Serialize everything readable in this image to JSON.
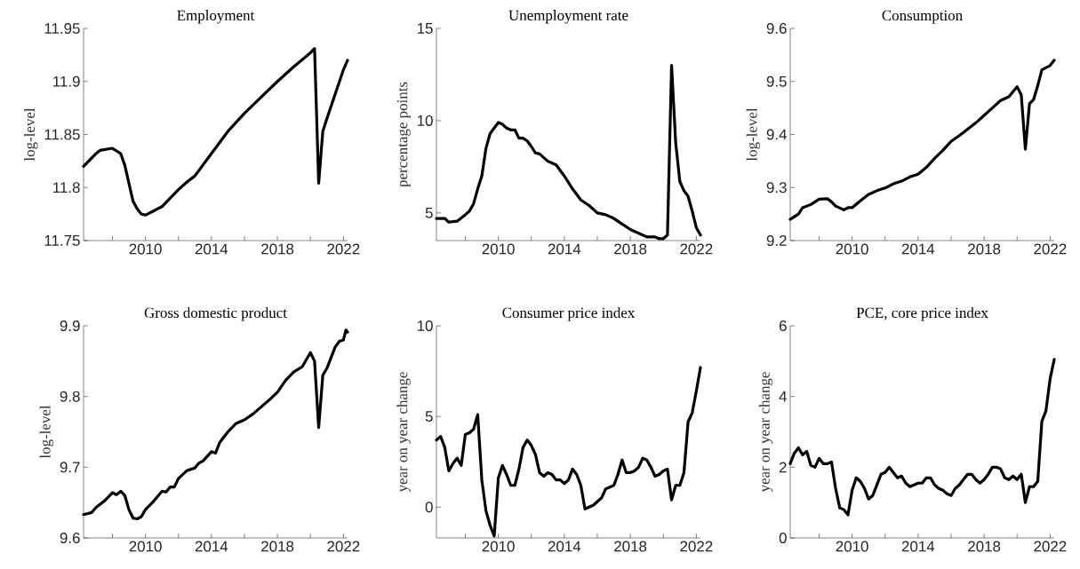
{
  "chart_data": [
    {
      "type": "line",
      "title": "Employment",
      "ylabel": "log-level",
      "color": "#000000",
      "line_style": "solid",
      "xlim": [
        2006.25,
        2022.25
      ],
      "xticks": [
        {
          "value": 2008,
          "label": null
        },
        2010,
        {
          "value": 2012,
          "label": null
        },
        2014,
        {
          "value": 2016,
          "label": null
        },
        2018,
        {
          "value": 2020,
          "label": null
        },
        2022
      ],
      "ylim": [
        11.75,
        11.95
      ],
      "yticks": [
        11.75,
        11.8,
        11.85,
        11.9,
        11.95
      ],
      "x": [
        2006.25,
        2007.0,
        2007.25,
        2008.0,
        2008.5,
        2008.75,
        2009.0,
        2009.25,
        2009.5,
        2009.75,
        2010.0,
        2010.5,
        2011.0,
        2011.5,
        2012.0,
        2012.5,
        2013.0,
        2014.0,
        2015.0,
        2016.0,
        2017.0,
        2018.0,
        2019.0,
        2020.0,
        2020.25,
        2020.5,
        2020.75,
        2021.0,
        2021.5,
        2022.0,
        2022.25
      ],
      "values": [
        11.82,
        11.832,
        11.835,
        11.837,
        11.832,
        11.821,
        11.804,
        11.787,
        11.78,
        11.775,
        11.774,
        11.778,
        11.782,
        11.79,
        11.798,
        11.805,
        11.811,
        11.832,
        11.853,
        11.87,
        11.885,
        11.9,
        11.914,
        11.927,
        11.931,
        11.804,
        11.853,
        11.865,
        11.888,
        11.911,
        11.92
      ]
    },
    {
      "type": "line",
      "title": "Unemployment rate",
      "ylabel": "percentage points",
      "color": "#000000",
      "line_style": "solid",
      "xlim": [
        2006.25,
        2022.25
      ],
      "xticks": [
        {
          "value": 2008,
          "label": null
        },
        2010,
        {
          "value": 2012,
          "label": null
        },
        2014,
        {
          "value": 2016,
          "label": null
        },
        2018,
        {
          "value": 2020,
          "label": null
        },
        2022
      ],
      "ylim": [
        3.5,
        15
      ],
      "yticks": [
        5,
        10,
        15
      ],
      "x": [
        2006.25,
        2006.75,
        2007.0,
        2007.5,
        2008.0,
        2008.25,
        2008.5,
        2008.75,
        2009.0,
        2009.25,
        2009.5,
        2009.75,
        2010.0,
        2010.25,
        2010.5,
        2010.75,
        2011.0,
        2011.25,
        2011.5,
        2011.75,
        2012.0,
        2012.25,
        2012.5,
        2013.0,
        2013.5,
        2014.0,
        2014.5,
        2015.0,
        2015.5,
        2016.0,
        2016.5,
        2017.0,
        2017.5,
        2018.0,
        2018.5,
        2019.0,
        2019.5,
        2019.75,
        2020.0,
        2020.25,
        2020.5,
        2020.75,
        2021.0,
        2021.25,
        2021.5,
        2021.75,
        2022.0,
        2022.25
      ],
      "values": [
        4.7,
        4.7,
        4.5,
        4.55,
        4.9,
        5.1,
        5.5,
        6.3,
        7.0,
        8.5,
        9.3,
        9.6,
        9.9,
        9.8,
        9.6,
        9.5,
        9.5,
        9.05,
        9.05,
        8.9,
        8.6,
        8.25,
        8.2,
        7.8,
        7.6,
        7.0,
        6.3,
        5.7,
        5.4,
        5.0,
        4.9,
        4.7,
        4.4,
        4.1,
        3.9,
        3.7,
        3.7,
        3.6,
        3.6,
        3.8,
        13.0,
        8.8,
        6.7,
        6.2,
        5.9,
        5.1,
        4.2,
        3.8
      ]
    },
    {
      "type": "line",
      "title": "Consumption",
      "ylabel": "log-level",
      "color": "#000000",
      "line_style": "solid",
      "xlim": [
        2006.25,
        2022.25
      ],
      "xticks": [
        {
          "value": 2008,
          "label": null
        },
        2010,
        {
          "value": 2012,
          "label": null
        },
        2014,
        {
          "value": 2016,
          "label": null
        },
        2018,
        {
          "value": 2020,
          "label": null
        },
        2022
      ],
      "ylim": [
        9.2,
        9.6
      ],
      "yticks": [
        9.2,
        9.3,
        9.4,
        9.5,
        9.6
      ],
      "x": [
        2006.25,
        2006.75,
        2007.0,
        2007.5,
        2008.0,
        2008.5,
        2008.75,
        2009.0,
        2009.5,
        2009.75,
        2010.0,
        2010.5,
        2011.0,
        2011.5,
        2012.0,
        2012.5,
        2013.0,
        2013.5,
        2014.0,
        2014.5,
        2015.0,
        2015.5,
        2016.0,
        2016.5,
        2017.0,
        2017.5,
        2018.0,
        2018.5,
        2019.0,
        2019.5,
        2020.0,
        2020.25,
        2020.5,
        2020.75,
        2021.0,
        2021.25,
        2021.5,
        2022.0,
        2022.25
      ],
      "values": [
        9.24,
        9.25,
        9.262,
        9.268,
        9.278,
        9.279,
        9.273,
        9.265,
        9.258,
        9.262,
        9.262,
        9.275,
        9.287,
        9.294,
        9.299,
        9.307,
        9.312,
        9.32,
        9.325,
        9.338,
        9.355,
        9.37,
        9.387,
        9.398,
        9.41,
        9.422,
        9.436,
        9.45,
        9.464,
        9.471,
        9.49,
        9.475,
        9.372,
        9.458,
        9.466,
        9.492,
        9.522,
        9.53,
        9.54
      ]
    },
    {
      "type": "line",
      "title": "Gross domestic product",
      "ylabel": "log-level",
      "color": "#000000",
      "line_style": "solid",
      "xlim": [
        2006.25,
        2022.25
      ],
      "xticks": [
        {
          "value": 2008,
          "label": null
        },
        2010,
        {
          "value": 2012,
          "label": null
        },
        2014,
        {
          "value": 2016,
          "label": null
        },
        2018,
        {
          "value": 2020,
          "label": null
        },
        2022
      ],
      "ylim": [
        9.6,
        9.9
      ],
      "yticks": [
        9.6,
        9.7,
        9.8,
        9.9
      ],
      "x": [
        2006.25,
        2006.75,
        2007.0,
        2007.5,
        2008.0,
        2008.25,
        2008.5,
        2008.75,
        2009.0,
        2009.25,
        2009.5,
        2009.75,
        2010.0,
        2010.5,
        2011.0,
        2011.25,
        2011.5,
        2011.75,
        2012.0,
        2012.5,
        2013.0,
        2013.25,
        2013.5,
        2014.0,
        2014.25,
        2014.5,
        2015.0,
        2015.5,
        2016.0,
        2016.5,
        2017.0,
        2017.5,
        2018.0,
        2018.5,
        2019.0,
        2019.5,
        2020.0,
        2020.25,
        2020.5,
        2020.75,
        2021.0,
        2021.25,
        2021.5,
        2021.75,
        2022.0,
        2022.15,
        2022.25
      ],
      "values": [
        9.633,
        9.636,
        9.643,
        9.652,
        9.664,
        9.661,
        9.666,
        9.66,
        9.64,
        9.628,
        9.627,
        9.63,
        9.64,
        9.652,
        9.666,
        9.665,
        9.672,
        9.672,
        9.684,
        9.695,
        9.699,
        9.706,
        9.709,
        9.722,
        9.72,
        9.735,
        9.75,
        9.762,
        9.767,
        9.775,
        9.785,
        9.795,
        9.806,
        9.823,
        9.835,
        9.842,
        9.862,
        9.85,
        9.756,
        9.83,
        9.84,
        9.855,
        9.87,
        9.878,
        9.88,
        9.894,
        9.891
      ]
    },
    {
      "type": "line",
      "title": "Consumer price index",
      "ylabel": "year on year change",
      "color": "#000000",
      "line_style": "solid",
      "xlim": [
        2006.25,
        2022.25
      ],
      "xticks": [
        {
          "value": 2008,
          "label": null
        },
        2010,
        {
          "value": 2012,
          "label": null
        },
        2014,
        {
          "value": 2016,
          "label": null
        },
        2018,
        {
          "value": 2020,
          "label": null
        },
        2022
      ],
      "ylim": [
        -1.7,
        10
      ],
      "yticks": [
        0,
        5,
        10
      ],
      "x": [
        2006.25,
        2006.5,
        2006.75,
        2007.0,
        2007.25,
        2007.5,
        2007.75,
        2008.0,
        2008.25,
        2008.5,
        2008.75,
        2009.0,
        2009.25,
        2009.5,
        2009.75,
        2010.0,
        2010.25,
        2010.5,
        2010.75,
        2011.0,
        2011.25,
        2011.5,
        2011.75,
        2012.0,
        2012.25,
        2012.5,
        2012.75,
        2013.0,
        2013.25,
        2013.5,
        2013.75,
        2014.0,
        2014.25,
        2014.5,
        2014.75,
        2015.0,
        2015.25,
        2015.5,
        2015.75,
        2016.0,
        2016.25,
        2016.5,
        2016.75,
        2017.0,
        2017.25,
        2017.5,
        2017.75,
        2018.0,
        2018.25,
        2018.5,
        2018.75,
        2019.0,
        2019.25,
        2019.5,
        2019.75,
        2020.0,
        2020.25,
        2020.5,
        2020.75,
        2021.0,
        2021.25,
        2021.5,
        2021.75,
        2022.0,
        2022.25
      ],
      "values": [
        3.7,
        3.9,
        3.3,
        2.0,
        2.4,
        2.7,
        2.3,
        4.0,
        4.1,
        4.3,
        5.1,
        1.5,
        -0.2,
        -1.0,
        -1.6,
        1.6,
        2.3,
        1.8,
        1.2,
        1.2,
        2.1,
        3.3,
        3.7,
        3.4,
        2.9,
        1.9,
        1.7,
        1.9,
        1.8,
        1.5,
        1.5,
        1.3,
        1.5,
        2.1,
        1.8,
        1.2,
        -0.1,
        0.0,
        0.1,
        0.3,
        0.5,
        1.0,
        1.1,
        1.2,
        1.8,
        2.6,
        1.9,
        1.9,
        2.0,
        2.2,
        2.7,
        2.6,
        2.2,
        1.7,
        1.8,
        2.0,
        2.1,
        0.4,
        1.2,
        1.2,
        1.9,
        4.7,
        5.2,
        6.4,
        7.7
      ]
    },
    {
      "type": "line",
      "title": "PCE, core price index",
      "ylabel": "year on year change",
      "color": "#000000",
      "line_style": "solid",
      "xlim": [
        2006.25,
        2022.25
      ],
      "xticks": [
        {
          "value": 2008,
          "label": null
        },
        2010,
        {
          "value": 2012,
          "label": null
        },
        2014,
        {
          "value": 2016,
          "label": null
        },
        2018,
        {
          "value": 2020,
          "label": null
        },
        2022
      ],
      "ylim": [
        0,
        6
      ],
      "yticks": [
        0,
        2,
        4,
        6
      ],
      "x": [
        2006.25,
        2006.5,
        2006.75,
        2007.0,
        2007.25,
        2007.5,
        2007.75,
        2008.0,
        2008.25,
        2008.5,
        2008.75,
        2009.0,
        2009.25,
        2009.5,
        2009.75,
        2010.0,
        2010.25,
        2010.5,
        2010.75,
        2011.0,
        2011.25,
        2011.5,
        2011.75,
        2012.0,
        2012.25,
        2012.5,
        2012.75,
        2013.0,
        2013.25,
        2013.5,
        2013.75,
        2014.0,
        2014.25,
        2014.5,
        2014.75,
        2015.0,
        2015.25,
        2015.5,
        2015.75,
        2016.0,
        2016.25,
        2016.5,
        2016.75,
        2017.0,
        2017.25,
        2017.5,
        2017.75,
        2018.0,
        2018.25,
        2018.5,
        2018.75,
        2019.0,
        2019.25,
        2019.5,
        2019.75,
        2020.0,
        2020.25,
        2020.5,
        2020.75,
        2021.0,
        2021.25,
        2021.5,
        2021.75,
        2022.0,
        2022.25
      ],
      "values": [
        2.1,
        2.4,
        2.55,
        2.35,
        2.45,
        2.05,
        2.0,
        2.25,
        2.1,
        2.1,
        2.15,
        1.4,
        0.85,
        0.8,
        0.65,
        1.35,
        1.7,
        1.6,
        1.4,
        1.1,
        1.2,
        1.5,
        1.8,
        1.85,
        2.0,
        1.85,
        1.7,
        1.75,
        1.55,
        1.45,
        1.5,
        1.55,
        1.55,
        1.7,
        1.7,
        1.5,
        1.4,
        1.35,
        1.25,
        1.2,
        1.4,
        1.5,
        1.65,
        1.8,
        1.8,
        1.65,
        1.55,
        1.65,
        1.8,
        2.0,
        2.0,
        1.95,
        1.7,
        1.65,
        1.75,
        1.65,
        1.8,
        1.0,
        1.45,
        1.45,
        1.6,
        3.3,
        3.6,
        4.5,
        5.05
      ]
    }
  ]
}
